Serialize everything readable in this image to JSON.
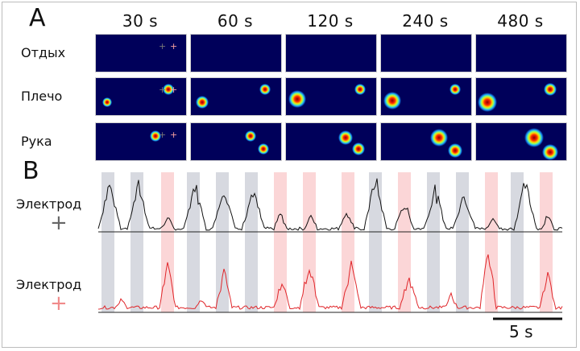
{
  "panels": {
    "a": "A",
    "b": "B"
  },
  "time_labels": [
    "30 s",
    "60 s",
    "120 s",
    "240 s",
    "480 s"
  ],
  "row_labels": [
    "Отдых",
    "Плечо",
    "Рука"
  ],
  "traces": [
    {
      "label": "Электрод",
      "marker": "+",
      "color": "#111111"
    },
    {
      "label": "Электрод",
      "marker": "+",
      "color": "#e0262a"
    }
  ],
  "plus_marker_colors": {
    "black": "#555555",
    "red": "#f08a8a"
  },
  "shading_colors": {
    "gray": "#c9ccd6",
    "pink": "#f9c8ca"
  },
  "heatmap_background": "#00005a",
  "scale_bar": {
    "label": "5 s"
  }
}
